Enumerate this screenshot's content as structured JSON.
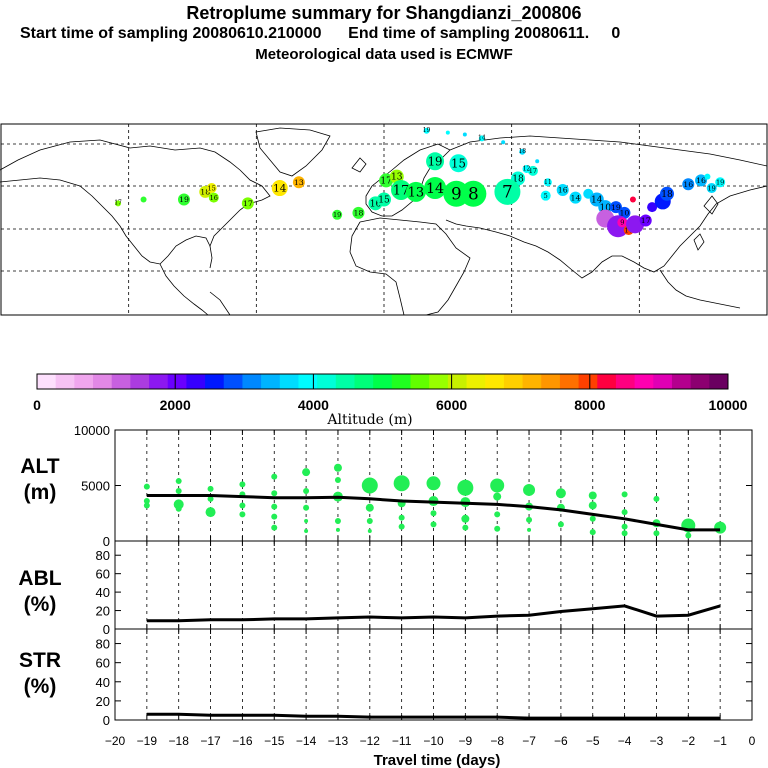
{
  "header": {
    "title": "Retroplume summary for Shangdianzi_200806",
    "subtitle": "Start time of sampling 20080610.210000      End time of sampling 20080611.     0",
    "met_line": "Meteorological data used is ECMWF"
  },
  "colors": {
    "plume": "#22ee55",
    "line": "#000000",
    "scale": [
      "#fde0fd",
      "#f6c2f4",
      "#f0a6ee",
      "#e288e6",
      "#c760e0",
      "#ab3ce0",
      "#8c18f0",
      "#6a00ff",
      "#3600ff",
      "#0018ff",
      "#0050ff",
      "#0088ff",
      "#00b4ff",
      "#00dcff",
      "#00fcff",
      "#00ffd8",
      "#00ffa6",
      "#00ff7a",
      "#00ff4a",
      "#20ff20",
      "#62ff00",
      "#98ff00",
      "#c8f000",
      "#ecf000",
      "#ffe800",
      "#ffd000",
      "#ffb400",
      "#ff9600",
      "#ff7000",
      "#ff4000",
      "#ff0040",
      "#ff0080",
      "#ff00b0",
      "#e000b4",
      "#b4008e",
      "#8c0070",
      "#6a0060"
    ]
  },
  "colorbar": {
    "ticks": [
      "0",
      "2000",
      "4000",
      "6000",
      "8000",
      "10000"
    ],
    "label": "Altitude (m)"
  },
  "map": {
    "points": [
      {
        "lon": -125,
        "lat": 38,
        "n": "17",
        "c": "#7bff00",
        "r": 3
      },
      {
        "lon": -113,
        "lat": 40,
        "n": "",
        "c": "#30ff30",
        "r": 3
      },
      {
        "lon": -94,
        "lat": 40,
        "n": "19",
        "c": "#30ff30",
        "r": 6
      },
      {
        "lon": -84,
        "lat": 44,
        "n": "18",
        "c": "#d0f000",
        "r": 6
      },
      {
        "lon": -81,
        "lat": 46,
        "n": "15",
        "c": "#eef000",
        "r": 5
      },
      {
        "lon": -80,
        "lat": 41,
        "n": "16",
        "c": "#7bff00",
        "r": 5
      },
      {
        "lon": -64,
        "lat": 38,
        "n": "17",
        "c": "#7bff00",
        "r": 6
      },
      {
        "lon": -49,
        "lat": 46,
        "n": "14",
        "c": "#ffe800",
        "r": 8
      },
      {
        "lon": -40,
        "lat": 49,
        "n": "13",
        "c": "#ffb400",
        "r": 6
      },
      {
        "lon": -22,
        "lat": 32,
        "n": "19",
        "c": "#30ff30",
        "r": 5
      },
      {
        "lon": -12,
        "lat": 33,
        "n": "18",
        "c": "#30ff30",
        "r": 6
      },
      {
        "lon": -4,
        "lat": 38,
        "n": "16",
        "c": "#00ffa6",
        "r": 7
      },
      {
        "lon": 0,
        "lat": 40,
        "n": "15",
        "c": "#00ffa6",
        "r": 7
      },
      {
        "lon": 1,
        "lat": 50,
        "n": "17",
        "c": "#30ff30",
        "r": 7
      },
      {
        "lon": 6,
        "lat": 52,
        "n": "13",
        "c": "#98ff00",
        "r": 7
      },
      {
        "lon": 8,
        "lat": 45,
        "n": "17",
        "c": "#00ff7a",
        "r": 10
      },
      {
        "lon": 15,
        "lat": 44,
        "n": "13",
        "c": "#00ff4a",
        "r": 10
      },
      {
        "lon": 24,
        "lat": 46,
        "n": "14",
        "c": "#00ff4a",
        "r": 11
      },
      {
        "lon": 34,
        "lat": 43,
        "n": "9",
        "c": "#00ff4a",
        "r": 13
      },
      {
        "lon": 42,
        "lat": 43,
        "n": "8",
        "c": "#00ff4a",
        "r": 13
      },
      {
        "lon": 24,
        "lat": 60,
        "n": "19",
        "c": "#00ffa6",
        "r": 9
      },
      {
        "lon": 35,
        "lat": 59,
        "n": "15",
        "c": "#00ffd8",
        "r": 9
      },
      {
        "lon": 20,
        "lat": 76,
        "n": "19",
        "c": "#00fcff",
        "r": 3
      },
      {
        "lon": 30,
        "lat": 75,
        "n": "",
        "c": "#00fcff",
        "r": 2
      },
      {
        "lon": 38,
        "lat": 74,
        "n": "",
        "c": "#00dcff",
        "r": 2
      },
      {
        "lon": 46,
        "lat": 72,
        "n": "14",
        "c": "#00fcff",
        "r": 3
      },
      {
        "lon": 56,
        "lat": 70,
        "n": "",
        "c": "#00dcff",
        "r": 2
      },
      {
        "lon": 65,
        "lat": 65,
        "n": "18",
        "c": "#00dcff",
        "r": 3
      },
      {
        "lon": 72,
        "lat": 60,
        "n": "",
        "c": "#00dcff",
        "r": 2
      },
      {
        "lon": 70,
        "lat": 55,
        "n": "17",
        "c": "#00ffd8",
        "r": 5
      },
      {
        "lon": 63,
        "lat": 51,
        "n": "18",
        "c": "#00ffd8",
        "r": 7
      },
      {
        "lon": 58,
        "lat": 44,
        "n": "7",
        "c": "#00ffa6",
        "r": 13
      },
      {
        "lon": 67,
        "lat": 56,
        "n": "12",
        "c": "#00fcff",
        "r": 4
      },
      {
        "lon": 77,
        "lat": 49,
        "n": "11",
        "c": "#00fcff",
        "r": 4
      },
      {
        "lon": 76,
        "lat": 42,
        "n": "5",
        "c": "#00fcff",
        "r": 5
      },
      {
        "lon": 84,
        "lat": 45,
        "n": "16",
        "c": "#00dcff",
        "r": 6
      },
      {
        "lon": 90,
        "lat": 41,
        "n": "14",
        "c": "#00dcff",
        "r": 6
      },
      {
        "lon": 96,
        "lat": 43,
        "n": "",
        "c": "#00dcff",
        "r": 5
      },
      {
        "lon": 100,
        "lat": 40,
        "n": "14",
        "c": "#00b4ff",
        "r": 7
      },
      {
        "lon": 104,
        "lat": 36,
        "n": "10",
        "c": "#00b4ff",
        "r": 7
      },
      {
        "lon": 109,
        "lat": 36,
        "n": "19",
        "c": "#0050ff",
        "r": 6
      },
      {
        "lon": 113,
        "lat": 33,
        "n": "10",
        "c": "#0050ff",
        "r": 6
      },
      {
        "lon": 104,
        "lat": 30,
        "n": "",
        "c": "#c760e0",
        "r": 9
      },
      {
        "lon": 110,
        "lat": 26,
        "n": "",
        "c": "#8c18f0",
        "r": 11
      },
      {
        "lon": 115,
        "lat": 24,
        "n": "17",
        "c": "#ff4000",
        "r": 5
      },
      {
        "lon": 112,
        "lat": 28,
        "n": "9",
        "c": "#ff00b0",
        "r": 5
      },
      {
        "lon": 118,
        "lat": 27,
        "n": "",
        "c": "#8c18f0",
        "r": 9
      },
      {
        "lon": 123,
        "lat": 29,
        "n": "17",
        "c": "#6a00ff",
        "r": 6
      },
      {
        "lon": 126,
        "lat": 36,
        "n": "",
        "c": "#3600ff",
        "r": 5
      },
      {
        "lon": 131,
        "lat": 39,
        "n": "",
        "c": "#0018ff",
        "r": 8
      },
      {
        "lon": 133,
        "lat": 43,
        "n": "18",
        "c": "#0050ff",
        "r": 7
      },
      {
        "lon": 143,
        "lat": 48,
        "n": "16",
        "c": "#0088ff",
        "r": 6
      },
      {
        "lon": 149,
        "lat": 50,
        "n": "16",
        "c": "#00b4ff",
        "r": 6
      },
      {
        "lon": 154,
        "lat": 46,
        "n": "19",
        "c": "#00dcff",
        "r": 5
      },
      {
        "lon": 158,
        "lat": 49,
        "n": "19",
        "c": "#00fcff",
        "r": 5
      },
      {
        "lon": 152,
        "lat": 52,
        "n": "",
        "c": "#00fcff",
        "r": 3
      },
      {
        "lon": 117,
        "lat": 40,
        "n": "",
        "c": "#ff0040",
        "r": 3
      }
    ]
  },
  "chart_data": [
    {
      "type": "scatter",
      "panel": "ALT",
      "ylabel": "ALT (m)",
      "ylim": [
        0,
        10000
      ],
      "yticks": [
        0,
        5000,
        10000
      ],
      "xlim": [
        -20,
        0
      ],
      "line": {
        "x": [
          -19,
          -18,
          -17,
          -16,
          -15,
          -14,
          -13,
          -12,
          -11,
          -10,
          -9,
          -8,
          -7,
          -6,
          -5,
          -4,
          -3,
          -2,
          -1
        ],
        "y": [
          4100,
          4100,
          4100,
          4000,
          3900,
          3900,
          3950,
          3800,
          3600,
          3500,
          3400,
          3300,
          3100,
          2800,
          2400,
          2000,
          1500,
          1000,
          1000
        ]
      },
      "points": [
        [
          -19,
          4900,
          3
        ],
        [
          -19,
          3600,
          3
        ],
        [
          -19,
          3200,
          3
        ],
        [
          -18,
          5400,
          3
        ],
        [
          -18,
          4500,
          3
        ],
        [
          -18,
          3300,
          5
        ],
        [
          -18,
          2900,
          3
        ],
        [
          -17,
          4700,
          3
        ],
        [
          -17,
          3800,
          3
        ],
        [
          -17,
          2600,
          5
        ],
        [
          -16,
          5100,
          3
        ],
        [
          -16,
          4200,
          3
        ],
        [
          -16,
          3200,
          3
        ],
        [
          -16,
          2400,
          3
        ],
        [
          -15,
          5800,
          3
        ],
        [
          -15,
          4300,
          3
        ],
        [
          -15,
          3100,
          3
        ],
        [
          -15,
          2200,
          3
        ],
        [
          -15,
          1200,
          3
        ],
        [
          -14,
          6200,
          4
        ],
        [
          -14,
          4500,
          3
        ],
        [
          -14,
          3000,
          3
        ],
        [
          -14,
          1800,
          2
        ],
        [
          -14,
          900,
          2
        ],
        [
          -13,
          6600,
          4
        ],
        [
          -13,
          5500,
          3
        ],
        [
          -13,
          4000,
          5
        ],
        [
          -13,
          1800,
          3
        ],
        [
          -13,
          1000,
          2
        ],
        [
          -12,
          5000,
          8
        ],
        [
          -12,
          3000,
          4
        ],
        [
          -12,
          1800,
          3
        ],
        [
          -12,
          900,
          2
        ],
        [
          -11,
          5200,
          8
        ],
        [
          -11,
          3400,
          4
        ],
        [
          -11,
          2100,
          3
        ],
        [
          -11,
          1300,
          3
        ],
        [
          -10,
          5200,
          7
        ],
        [
          -10,
          3600,
          5
        ],
        [
          -10,
          2500,
          3
        ],
        [
          -10,
          1500,
          3
        ],
        [
          -9,
          4800,
          8
        ],
        [
          -9,
          3500,
          5
        ],
        [
          -9,
          2000,
          4
        ],
        [
          -9,
          1200,
          3
        ],
        [
          -8,
          5000,
          7
        ],
        [
          -8,
          4000,
          4
        ],
        [
          -8,
          2400,
          3
        ],
        [
          -8,
          1100,
          3
        ],
        [
          -7,
          4600,
          6
        ],
        [
          -7,
          3100,
          4
        ],
        [
          -7,
          1900,
          3
        ],
        [
          -7,
          1000,
          2
        ],
        [
          -6,
          4300,
          5
        ],
        [
          -6,
          3000,
          4
        ],
        [
          -6,
          1500,
          3
        ],
        [
          -5,
          4100,
          4
        ],
        [
          -5,
          3200,
          4
        ],
        [
          -5,
          2000,
          3
        ],
        [
          -5,
          800,
          3
        ],
        [
          -4,
          4200,
          3
        ],
        [
          -4,
          2600,
          3
        ],
        [
          -4,
          1300,
          3
        ],
        [
          -4,
          700,
          3
        ],
        [
          -3,
          3800,
          3
        ],
        [
          -3,
          1600,
          4
        ],
        [
          -3,
          700,
          3
        ],
        [
          -2,
          1400,
          7
        ],
        [
          -2,
          1000,
          3
        ],
        [
          -2,
          500,
          3
        ],
        [
          -1,
          1200,
          6
        ]
      ]
    },
    {
      "type": "line",
      "panel": "ABL",
      "ylabel": "ABL (%)",
      "ylim": [
        0,
        90
      ],
      "yticks": [
        0,
        20,
        40,
        60,
        80
      ],
      "x": [
        -19,
        -18,
        -17,
        -16,
        -15,
        -14,
        -13,
        -12,
        -11,
        -10,
        -9,
        -8,
        -7,
        -6,
        -5,
        -4,
        -3,
        -2,
        -1
      ],
      "values": [
        9,
        9,
        10,
        10,
        11,
        11,
        12,
        13,
        12,
        13,
        12,
        14,
        15,
        19,
        22,
        25,
        14,
        15,
        25
      ]
    },
    {
      "type": "line",
      "panel": "STR",
      "ylabel": "STR (%)",
      "ylim": [
        0,
        90
      ],
      "yticks": [
        0,
        20,
        40,
        60,
        80
      ],
      "x": [
        -19,
        -18,
        -17,
        -16,
        -15,
        -14,
        -13,
        -12,
        -11,
        -10,
        -9,
        -8,
        -7,
        -6,
        -5,
        -4,
        -3,
        -2,
        -1
      ],
      "values": [
        6,
        6,
        5,
        5,
        5,
        4,
        4,
        3,
        3,
        3,
        3,
        3,
        2,
        2,
        2,
        2,
        2,
        2,
        2
      ]
    }
  ],
  "xaxis": {
    "ticks": [
      -20,
      -19,
      -18,
      -17,
      -16,
      -15,
      -14,
      -13,
      -12,
      -11,
      -10,
      -9,
      -8,
      -7,
      -6,
      -5,
      -4,
      -3,
      -2,
      -1,
      0
    ],
    "label": "Travel time (days)"
  },
  "panels": {
    "alt": {
      "line1": "ALT",
      "line2": "(m)"
    },
    "abl": {
      "line1": "ABL",
      "line2": "(%)"
    },
    "str": {
      "line1": "STR",
      "line2": "(%)"
    }
  }
}
